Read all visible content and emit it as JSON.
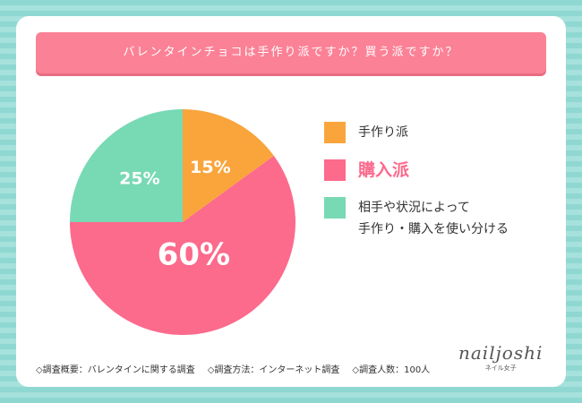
{
  "chart_data": {
    "type": "pie",
    "title": "バレンタインチョコは手作り派ですか？買う派ですか？",
    "categories": [
      "手作り派",
      "購入派",
      "相手や状況によって\n手作り・購入を使い分ける"
    ],
    "values": [
      15,
      60,
      25
    ],
    "value_labels": [
      "15%",
      "60%",
      "25%"
    ],
    "colors": [
      "#f9a53c",
      "#fc6a8c",
      "#78d9b5"
    ],
    "notes": [
      "◇調査概要：バレンタインに関する調査",
      "◇調査方法：インターネット調査",
      "◇調査人数：100人"
    ],
    "logo": {
      "text": "nailjoshi",
      "subtext": "ネイル女子"
    }
  }
}
